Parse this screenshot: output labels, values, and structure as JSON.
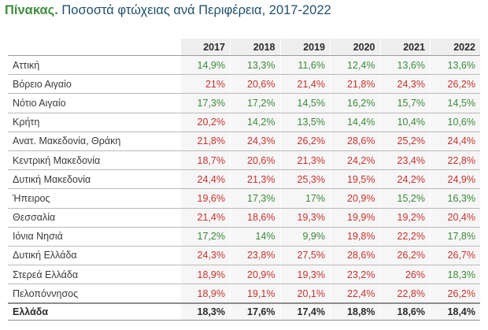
{
  "header": {
    "title_lead": "Πίνακας.",
    "title_rest": " Ποσοστά φτώχειας ανά Περιφέρεια, 2017-2022"
  },
  "chart_data": {
    "type": "table",
    "title": "Πίνακας. Ποσοστά φτώχειας ανά Περιφέρεια, 2017-2022",
    "columns": [
      "2017",
      "2018",
      "2019",
      "2020",
      "2021",
      "2022"
    ],
    "rows": [
      {
        "region": "Αττική",
        "values": [
          "14,9%",
          "13,3%",
          "11,6%",
          "12,4%",
          "13,6%",
          "13,6%"
        ],
        "colors": [
          "g",
          "g",
          "g",
          "g",
          "g",
          "g"
        ]
      },
      {
        "region": "Βόρειο Αιγαίο",
        "values": [
          "21%",
          "20,6%",
          "21,4%",
          "21,8%",
          "24,3%",
          "26,2%"
        ],
        "colors": [
          "r",
          "r",
          "r",
          "r",
          "r",
          "r"
        ]
      },
      {
        "region": "Νότιο Αιγαίο",
        "values": [
          "17,3%",
          "17,2%",
          "14,5%",
          "16,2%",
          "15,7%",
          "14,5%"
        ],
        "colors": [
          "g",
          "g",
          "g",
          "g",
          "g",
          "g"
        ]
      },
      {
        "region": "Κρήτη",
        "values": [
          "20,2%",
          "14,2%",
          "13,5%",
          "14,4%",
          "10,4%",
          "10,6%"
        ],
        "colors": [
          "r",
          "g",
          "g",
          "g",
          "g",
          "g"
        ]
      },
      {
        "region": "Ανατ. Μακεδονία, Θράκη",
        "values": [
          "21,8%",
          "24,3%",
          "26,2%",
          "28,6%",
          "25,2%",
          "24,4%"
        ],
        "colors": [
          "r",
          "r",
          "r",
          "r",
          "r",
          "r"
        ]
      },
      {
        "region": "Κεντρική Μακεδονία",
        "values": [
          "18,7%",
          "20,6%",
          "21,3%",
          "24,2%",
          "23,4%",
          "22,8%"
        ],
        "colors": [
          "r",
          "r",
          "r",
          "r",
          "r",
          "r"
        ]
      },
      {
        "region": "Δυτική Μακεδονία",
        "values": [
          "24,4%",
          "21,3%",
          "25,3%",
          "19,5%",
          "24,2%",
          "24,9%"
        ],
        "colors": [
          "r",
          "r",
          "r",
          "r",
          "r",
          "r"
        ]
      },
      {
        "region": "Ήπειρος",
        "values": [
          "19,6%",
          "17,3%",
          "17%",
          "20,9%",
          "15,2%",
          "16,3%"
        ],
        "colors": [
          "r",
          "g",
          "g",
          "r",
          "g",
          "g"
        ]
      },
      {
        "region": "Θεσσαλία",
        "values": [
          "21,4%",
          "18,6%",
          "19,3%",
          "19,9%",
          "19,2%",
          "20,4%"
        ],
        "colors": [
          "r",
          "r",
          "r",
          "r",
          "r",
          "r"
        ]
      },
      {
        "region": "Ιόνια Νησιά",
        "values": [
          "17,2%",
          "14%",
          "9,9%",
          "19,8%",
          "22,2%",
          "17,8%"
        ],
        "colors": [
          "g",
          "g",
          "g",
          "r",
          "r",
          "g"
        ]
      },
      {
        "region": "Δυτική Ελλάδα",
        "values": [
          "24,3%",
          "23,8%",
          "27,5%",
          "28,6%",
          "26,2%",
          "26,7%"
        ],
        "colors": [
          "r",
          "r",
          "r",
          "r",
          "r",
          "r"
        ]
      },
      {
        "region": "Στερεά Ελλάδα",
        "values": [
          "18,9%",
          "20,9%",
          "19,3%",
          "23,2%",
          "26%",
          "18,3%"
        ],
        "colors": [
          "r",
          "r",
          "r",
          "r",
          "r",
          "g"
        ]
      },
      {
        "region": "Πελοπόννησος",
        "values": [
          "18,9%",
          "19,1%",
          "20,1%",
          "22,4%",
          "22,8%",
          "26,2%"
        ],
        "colors": [
          "r",
          "r",
          "r",
          "r",
          "r",
          "r"
        ]
      }
    ],
    "total": {
      "region": "Ελλάδα",
      "values": [
        "18,3%",
        "17,6%",
        "17,4%",
        "18,8%",
        "18,6%",
        "18,4%"
      ]
    },
    "color_map": {
      "g": "#3a8a3a",
      "r": "#c8322d"
    }
  }
}
